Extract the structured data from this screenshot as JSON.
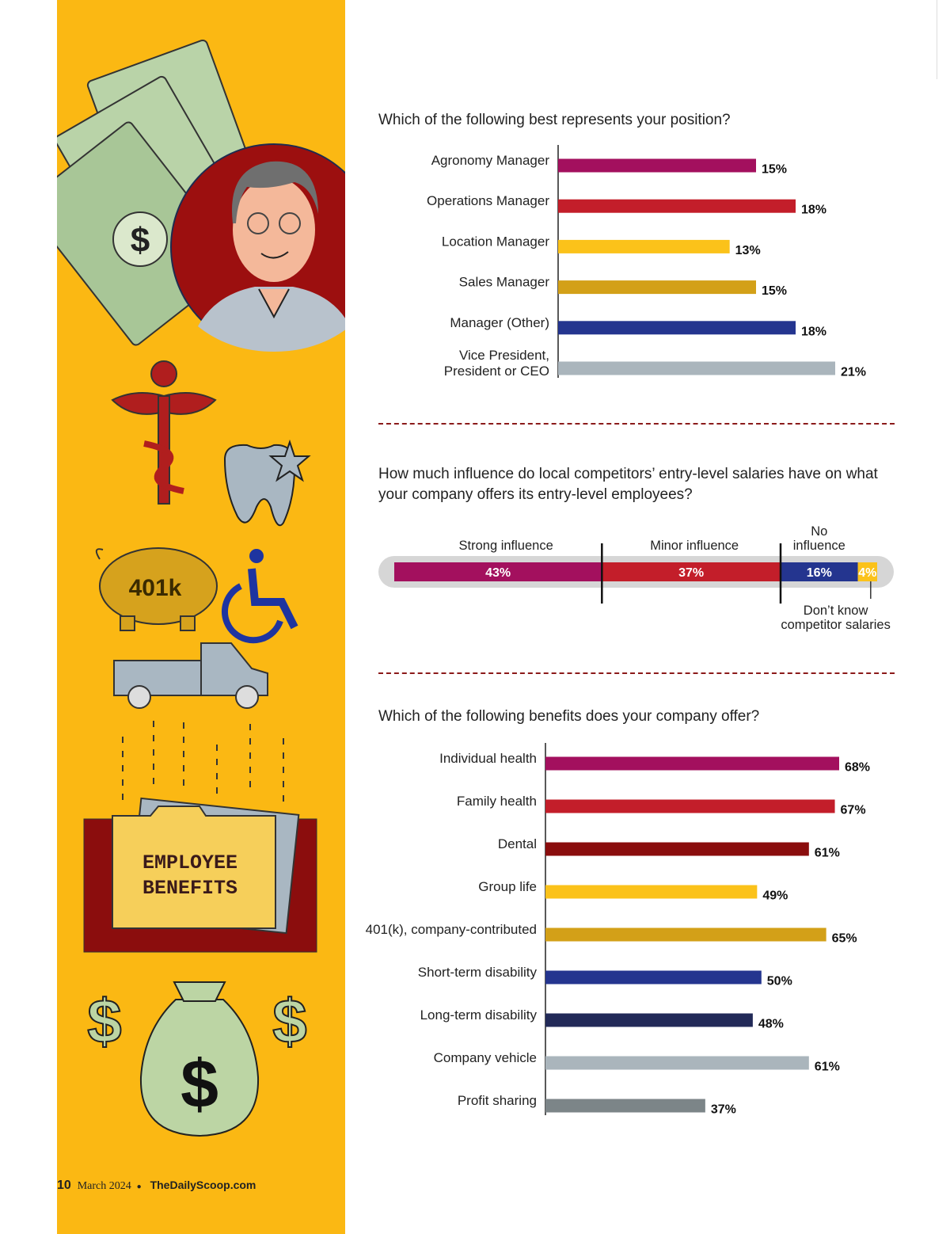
{
  "questions": {
    "position": "Which of the following best represents your position?",
    "influence": "How much influence do local competitors’ entry-level salaries have on what your company offers its entry-level employees?",
    "benefits": "Which of the following benefits does your company offer?"
  },
  "illustration": {
    "folder_line1": "EMPLOYEE",
    "folder_line2": "BENEFITS",
    "piggy_label": "401k"
  },
  "footer": {
    "page_number": "10",
    "date": "March 2024",
    "bullet": "●",
    "site": "TheDailyScoop.com"
  },
  "chart_data": [
    {
      "type": "bar",
      "orientation": "horizontal",
      "categories": [
        "Agronomy Manager",
        "Operations Manager",
        "Location Manager",
        "Sales Manager",
        "Manager (Other)",
        "Vice President, President or CEO"
      ],
      "values": [
        15,
        18,
        13,
        15,
        18,
        21
      ],
      "value_suffix": "%",
      "colors": [
        "#a3105e",
        "#c31e2a",
        "#fbc21a",
        "#d3a018",
        "#24358f",
        "#aab5bc"
      ],
      "xlim": [
        0,
        21
      ]
    },
    {
      "type": "bar",
      "orientation": "stacked-horizontal",
      "categories": [
        "Strong influence",
        "Minor influence",
        "No influence",
        "Don’t know competitor salaries"
      ],
      "labels_on_chart": [
        "Strong influence",
        "Minor influence",
        "No\ninfluence",
        "Don’t know\ncompetitor salaries"
      ],
      "values": [
        43,
        37,
        16,
        4
      ],
      "value_suffix": "%",
      "colors": [
        "#a3105e",
        "#c31e2a",
        "#24358f",
        "#fbc21a"
      ]
    },
    {
      "type": "bar",
      "orientation": "horizontal",
      "categories": [
        "Individual health",
        "Family health",
        "Dental",
        "Group life",
        "401(k), company-contributed",
        "Short-term disability",
        "Long-term disability",
        "Company vehicle",
        "Profit sharing"
      ],
      "values": [
        68,
        67,
        61,
        49,
        65,
        50,
        48,
        61,
        37
      ],
      "value_suffix": "%",
      "colors": [
        "#a3105e",
        "#c31e2a",
        "#8a0d0d",
        "#fbc21a",
        "#d3a018",
        "#24358f",
        "#222a58",
        "#aab5bc",
        "#7c8588"
      ],
      "xlim": [
        0,
        68
      ]
    }
  ]
}
